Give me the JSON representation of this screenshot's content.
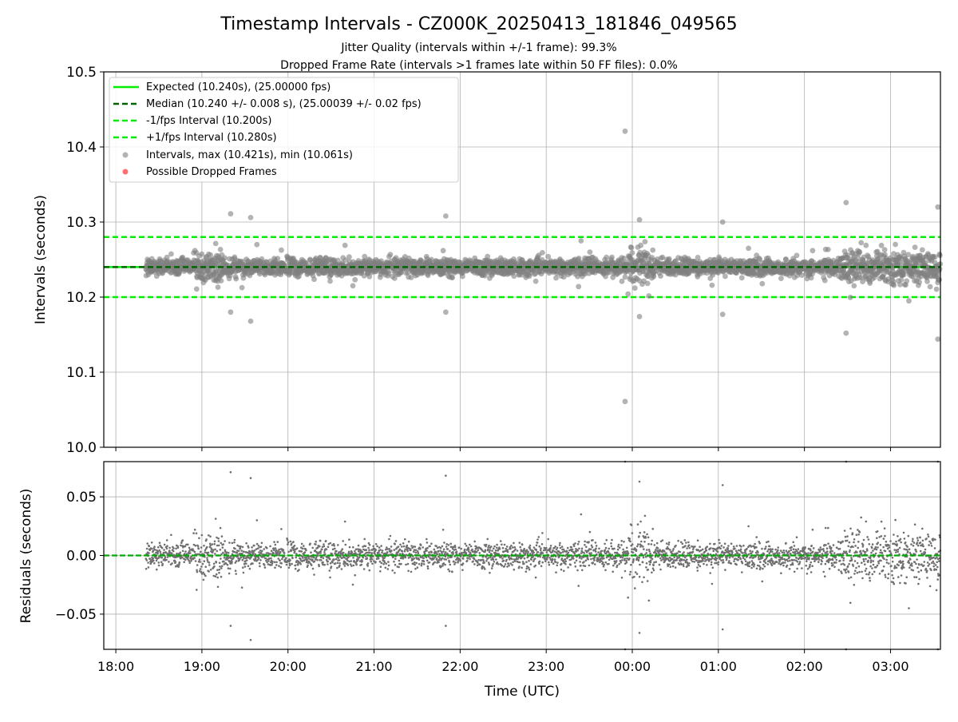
{
  "figure": {
    "title": "Timestamp Intervals - CZ000K_20250413_181846_049565",
    "subtitle_1": "Jitter Quality (intervals within +/-1 frame): 99.3%",
    "subtitle_2": "Dropped Frame Rate (intervals >1 frames late within 50 FF files): 0.0%"
  },
  "colors": {
    "expected": "#00ee00",
    "median": "#006400",
    "interval_band": "#00ee00",
    "points": "#808080",
    "dropped": "#ff4d4d",
    "grid": "#b0b0b0"
  },
  "chart_data": [
    {
      "type": "scatter",
      "panel": "intervals",
      "ylabel": "Intervals (seconds)",
      "ylim": [
        10.0,
        10.5
      ],
      "yticks": [
        "10.0",
        "10.1",
        "10.2",
        "10.3",
        "10.4",
        "10.5"
      ],
      "ytick_values": [
        10.0,
        10.1,
        10.2,
        10.3,
        10.4,
        10.5
      ],
      "x_range_hours": [
        17.86,
        27.58
      ],
      "grid": true,
      "legend_position": "upper left",
      "reference_lines": [
        {
          "name": "Expected (10.240s), (25.00000 fps)",
          "value": 10.24,
          "style": "solid",
          "color": "#00ee00"
        },
        {
          "name": "Median (10.240 +/- 0.008 s), (25.00039 +/- 0.02 fps)",
          "value": 10.24,
          "style": "dashed",
          "color": "#006400"
        },
        {
          "name": "-1/fps Interval (10.200s)",
          "value": 10.2,
          "style": "dashed",
          "color": "#00ee00"
        },
        {
          "name": "+1/fps Interval (10.280s)",
          "value": 10.28,
          "style": "dashed",
          "color": "#00ee00"
        }
      ],
      "series": [
        {
          "name": "Intervals, max (10.421s), min (10.061s)",
          "color": "#808080",
          "max": 10.421,
          "min": 10.061,
          "median": 10.24,
          "std": 0.008
        },
        {
          "name": "Possible Dropped Frames",
          "color": "#ff4d4d",
          "count": 0
        }
      ],
      "notable_points": [
        {
          "t": "19:20",
          "y": 10.311
        },
        {
          "t": "19:34",
          "y": 10.306
        },
        {
          "t": "21:50",
          "y": 10.308
        },
        {
          "t": "23:55",
          "y": 10.421
        },
        {
          "t": "00:05",
          "y": 10.303
        },
        {
          "t": "01:03",
          "y": 10.3
        },
        {
          "t": "02:29",
          "y": 10.326
        },
        {
          "t": "03:33",
          "y": 10.32
        },
        {
          "t": "19:20",
          "y": 10.18
        },
        {
          "t": "19:34",
          "y": 10.168
        },
        {
          "t": "21:50",
          "y": 10.18
        },
        {
          "t": "00:05",
          "y": 10.174
        },
        {
          "t": "01:03",
          "y": 10.177
        },
        {
          "t": "02:29",
          "y": 10.152
        },
        {
          "t": "03:33",
          "y": 10.144
        },
        {
          "t": "23:55",
          "y": 10.061
        }
      ]
    },
    {
      "type": "scatter",
      "panel": "residuals",
      "xlabel": "Time (UTC)",
      "ylabel": "Residuals (seconds)",
      "ylim": [
        -0.08,
        0.08
      ],
      "yticks": [
        "−0.05",
        "0.00",
        "0.05"
      ],
      "ytick_values": [
        -0.05,
        0.0,
        0.05
      ],
      "xticks": [
        "18:00",
        "19:00",
        "20:00",
        "21:00",
        "22:00",
        "23:00",
        "00:00",
        "01:00",
        "02:00",
        "03:00"
      ],
      "xtick_hours": [
        18,
        19,
        20,
        21,
        22,
        23,
        24,
        25,
        26,
        27
      ],
      "x_range_hours": [
        17.86,
        27.58
      ],
      "grid": true,
      "zero_line_color": "#00aa00",
      "series": [
        {
          "name": "Residuals",
          "color": "#707070",
          "max": 0.081,
          "min": -0.072
        }
      ]
    }
  ]
}
